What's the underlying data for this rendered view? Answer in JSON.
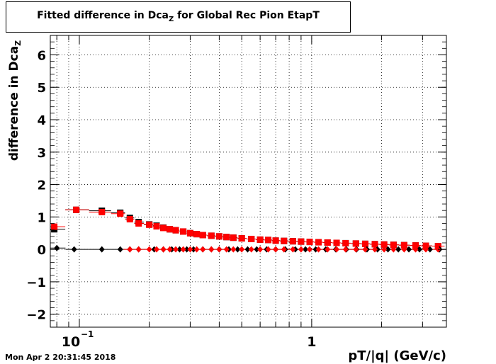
{
  "title": {
    "main": "Fitted difference in Dca",
    "sub": "Z",
    "rest": " for Global Rec Pion EtapT"
  },
  "footer": {
    "timestamp": "Mon Apr  2 20:31:45 2018"
  },
  "chart_data": {
    "type": "scatter",
    "title": "Fitted difference in Dca_Z for Global Rec Pion EtapT",
    "xlabel": "pT/|q| (GeV/c)",
    "ylabel_main": "difference in Dca",
    "ylabel_sub": "Z",
    "xscale": "log",
    "xlim": [
      0.075,
      3.8
    ],
    "ylim": [
      -2.4,
      6.6
    ],
    "grid": true,
    "x_ticks": [
      {
        "value": 0.1,
        "label": "10",
        "exp": "−1"
      },
      {
        "value": 1,
        "label": "1",
        "exp": ""
      }
    ],
    "y_ticks": [
      {
        "value": -2,
        "label": "−2"
      },
      {
        "value": -1,
        "label": "−1"
      },
      {
        "value": 0,
        "label": "0"
      },
      {
        "value": 1,
        "label": "1"
      },
      {
        "value": 2,
        "label": "2"
      },
      {
        "value": 3,
        "label": "3"
      },
      {
        "value": 4,
        "label": "4"
      },
      {
        "value": 5,
        "label": "5"
      },
      {
        "value": 6,
        "label": "6"
      }
    ],
    "colors": {
      "black": "#000000",
      "red": "#ff0000"
    },
    "series": [
      {
        "marker": "square",
        "color": "#000000",
        "points": [
          [
            0.078,
            0.62
          ],
          [
            0.097,
            1.22
          ],
          [
            0.125,
            1.19
          ],
          [
            0.15,
            1.13
          ],
          [
            0.165,
            0.97
          ],
          [
            0.18,
            0.84
          ],
          [
            0.2,
            0.77
          ],
          [
            0.215,
            0.73
          ],
          [
            0.23,
            0.67
          ],
          [
            0.245,
            0.62
          ],
          [
            0.26,
            0.59
          ],
          [
            0.28,
            0.55
          ],
          [
            0.3,
            0.5
          ],
          [
            0.32,
            0.47
          ],
          [
            0.34,
            0.44
          ],
          [
            0.37,
            0.42
          ],
          [
            0.4,
            0.4
          ],
          [
            0.43,
            0.38
          ],
          [
            0.46,
            0.36
          ],
          [
            0.5,
            0.34
          ],
          [
            0.55,
            0.32
          ],
          [
            0.6,
            0.3
          ],
          [
            0.65,
            0.29
          ],
          [
            0.7,
            0.27
          ],
          [
            0.76,
            0.26
          ],
          [
            0.83,
            0.25
          ],
          [
            0.9,
            0.24
          ],
          [
            0.98,
            0.23
          ],
          [
            1.07,
            0.22
          ],
          [
            1.17,
            0.21
          ],
          [
            1.28,
            0.2
          ],
          [
            1.4,
            0.19
          ],
          [
            1.55,
            0.18
          ],
          [
            1.7,
            0.17
          ],
          [
            1.87,
            0.16
          ],
          [
            2.05,
            0.15
          ],
          [
            2.25,
            0.14
          ],
          [
            2.5,
            0.13
          ],
          [
            2.8,
            0.12
          ],
          [
            3.1,
            0.11
          ],
          [
            3.5,
            0.1
          ]
        ]
      },
      {
        "marker": "square",
        "color": "#ff0000",
        "points": [
          [
            0.078,
            0.7
          ],
          [
            0.097,
            1.22
          ],
          [
            0.125,
            1.15
          ],
          [
            0.15,
            1.1
          ],
          [
            0.165,
            0.93
          ],
          [
            0.18,
            0.8
          ],
          [
            0.2,
            0.76
          ],
          [
            0.215,
            0.71
          ],
          [
            0.23,
            0.66
          ],
          [
            0.245,
            0.62
          ],
          [
            0.26,
            0.59
          ],
          [
            0.28,
            0.55
          ],
          [
            0.3,
            0.5
          ],
          [
            0.32,
            0.47
          ],
          [
            0.34,
            0.44
          ],
          [
            0.37,
            0.42
          ],
          [
            0.4,
            0.4
          ],
          [
            0.43,
            0.38
          ],
          [
            0.46,
            0.36
          ],
          [
            0.5,
            0.34
          ],
          [
            0.55,
            0.32
          ],
          [
            0.6,
            0.3
          ],
          [
            0.65,
            0.29
          ],
          [
            0.7,
            0.27
          ],
          [
            0.76,
            0.26
          ],
          [
            0.83,
            0.25
          ],
          [
            0.9,
            0.24
          ],
          [
            0.98,
            0.23
          ],
          [
            1.07,
            0.22
          ],
          [
            1.17,
            0.21
          ],
          [
            1.28,
            0.2
          ],
          [
            1.4,
            0.19
          ],
          [
            1.55,
            0.18
          ],
          [
            1.7,
            0.17
          ],
          [
            1.87,
            0.16
          ],
          [
            2.05,
            0.15
          ],
          [
            2.25,
            0.14
          ],
          [
            2.5,
            0.13
          ],
          [
            2.8,
            0.12
          ],
          [
            3.1,
            0.11
          ],
          [
            3.5,
            0.1
          ]
        ]
      },
      {
        "marker": "diamond",
        "color": "#000000",
        "points": [
          [
            0.08,
            0.04
          ],
          [
            0.095,
            0.0
          ],
          [
            0.125,
            0.0
          ],
          [
            0.15,
            0.0
          ],
          [
            0.165,
            0.0
          ],
          [
            0.18,
            0.0
          ],
          [
            0.21,
            0.0
          ],
          [
            0.23,
            0.0
          ],
          [
            0.25,
            0.0
          ],
          [
            0.27,
            0.0
          ],
          [
            0.29,
            0.0
          ],
          [
            0.31,
            0.0
          ],
          [
            0.34,
            0.0
          ],
          [
            0.37,
            0.0
          ],
          [
            0.4,
            0.0
          ],
          [
            0.44,
            0.0
          ],
          [
            0.48,
            0.0
          ],
          [
            0.53,
            0.0
          ],
          [
            0.58,
            0.0
          ],
          [
            0.64,
            0.0
          ],
          [
            0.7,
            0.0
          ],
          [
            0.77,
            0.0
          ],
          [
            0.85,
            0.0
          ],
          [
            0.94,
            0.0
          ],
          [
            1.04,
            0.0
          ],
          [
            1.15,
            0.0
          ],
          [
            1.27,
            0.0
          ],
          [
            1.41,
            0.0
          ],
          [
            1.56,
            0.0
          ],
          [
            1.73,
            0.0
          ],
          [
            1.92,
            0.0
          ],
          [
            2.13,
            0.0
          ],
          [
            2.36,
            0.0
          ],
          [
            2.62,
            0.0
          ],
          [
            2.91,
            0.0
          ],
          [
            3.23,
            0.0
          ],
          [
            3.55,
            0.0
          ]
        ]
      },
      {
        "marker": "diamond",
        "color": "#ff0000",
        "points": [
          [
            0.165,
            0.0
          ],
          [
            0.18,
            0.0
          ],
          [
            0.2,
            0.0
          ],
          [
            0.215,
            0.0
          ],
          [
            0.23,
            0.0
          ],
          [
            0.245,
            0.0
          ],
          [
            0.26,
            0.0
          ],
          [
            0.28,
            0.0
          ],
          [
            0.3,
            0.0
          ],
          [
            0.32,
            0.0
          ],
          [
            0.34,
            0.0
          ],
          [
            0.37,
            0.0
          ],
          [
            0.4,
            0.0
          ],
          [
            0.43,
            0.0
          ],
          [
            0.46,
            0.0
          ],
          [
            0.5,
            0.0
          ],
          [
            0.55,
            0.0
          ],
          [
            0.6,
            0.0
          ],
          [
            0.65,
            0.0
          ],
          [
            0.7,
            0.0
          ],
          [
            0.76,
            0.0
          ],
          [
            0.83,
            0.0
          ],
          [
            0.9,
            0.0
          ],
          [
            0.98,
            0.0
          ],
          [
            1.07,
            0.0
          ],
          [
            1.17,
            0.0
          ],
          [
            1.28,
            0.0
          ],
          [
            1.4,
            0.0
          ],
          [
            1.55,
            0.0
          ],
          [
            1.7,
            0.0
          ],
          [
            1.87,
            0.0
          ],
          [
            2.05,
            0.0
          ],
          [
            2.25,
            0.0
          ],
          [
            2.5,
            0.0
          ],
          [
            2.8,
            0.0
          ],
          [
            3.1,
            0.0
          ],
          [
            3.5,
            0.0
          ]
        ]
      }
    ]
  }
}
